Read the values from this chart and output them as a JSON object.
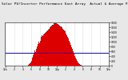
{
  "title": "Solar PV/Inverter Performance East Array  Actual & Average Power Output",
  "title_fontsize": 3.2,
  "bg_color": "#e8e8e8",
  "plot_bg": "#ffffff",
  "grid_color": "#aaaaaa",
  "bar_color": "#dd0000",
  "avg_line_color": "#0000ff",
  "avg_value": 0.3,
  "ylim": [
    0,
    1
  ],
  "ytick_labels": [
    "1800",
    "1600",
    "1400",
    "1200",
    "1000",
    "800",
    "600",
    "400",
    "200",
    "0"
  ],
  "num_bars": 144,
  "x_tick_labels": [
    "12a",
    "2",
    "4",
    "6",
    "8",
    "10",
    "12p",
    "2",
    "4",
    "6",
    "8",
    "10",
    "12a"
  ],
  "data": [
    0,
    0,
    0,
    0,
    0,
    0,
    0,
    0,
    0,
    0,
    0,
    0,
    0,
    0,
    0,
    0,
    0,
    0,
    0,
    0,
    0,
    0,
    0,
    0,
    0,
    0,
    0,
    0,
    0,
    0,
    0.01,
    0.02,
    0.03,
    0.05,
    0.08,
    0.12,
    0.18,
    0.24,
    0.3,
    0.35,
    0.32,
    0.38,
    0.44,
    0.5,
    0.55,
    0.52,
    0.58,
    0.63,
    0.67,
    0.7,
    0.68,
    0.72,
    0.74,
    0.76,
    0.78,
    0.8,
    0.82,
    0.84,
    0.86,
    0.88,
    0.9,
    0.92,
    0.94,
    0.95,
    0.97,
    0.98,
    0.99,
    1.0,
    0.98,
    0.96,
    0.97,
    0.95,
    0.93,
    0.91,
    0.9,
    0.88,
    0.86,
    0.84,
    0.82,
    0.8,
    0.77,
    0.74,
    0.7,
    0.67,
    0.63,
    0.58,
    0.53,
    0.48,
    0.43,
    0.38,
    0.33,
    0.28,
    0.23,
    0.19,
    0.15,
    0.12,
    0.09,
    0.07,
    0.05,
    0.03,
    0.02,
    0.01,
    0,
    0,
    0,
    0,
    0,
    0,
    0,
    0,
    0,
    0,
    0,
    0,
    0,
    0,
    0,
    0,
    0,
    0,
    0,
    0,
    0,
    0,
    0,
    0,
    0,
    0,
    0,
    0,
    0,
    0,
    0,
    0,
    0,
    0,
    0,
    0
  ]
}
